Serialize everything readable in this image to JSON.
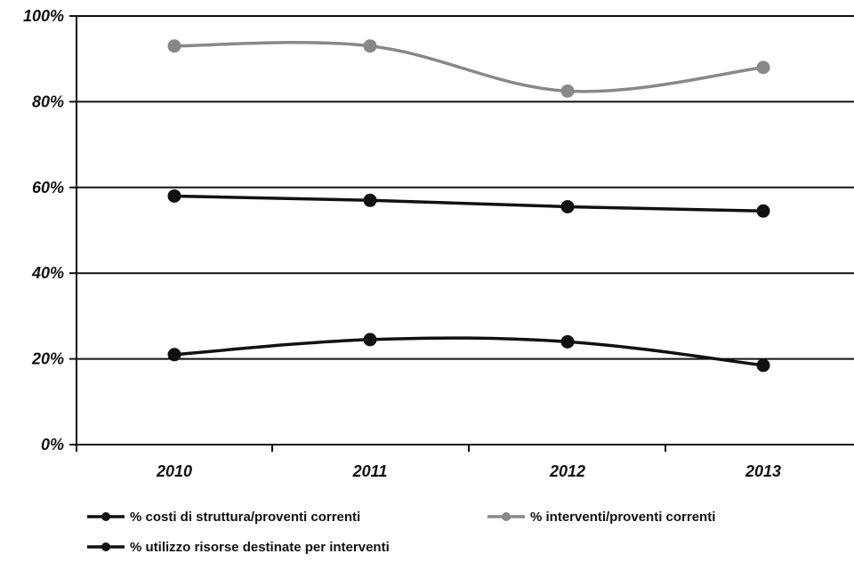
{
  "chart_data": {
    "type": "line",
    "categories": [
      "2010",
      "2011",
      "2012",
      "2013"
    ],
    "ylim": [
      0,
      100
    ],
    "yticks": [
      "0%",
      "20%",
      "40%",
      "60%",
      "80%",
      "100%"
    ],
    "grid": true,
    "legend_position": "bottom-left",
    "series": [
      {
        "name": "% costi di struttura/proventi correnti",
        "values": [
          58,
          57,
          55.5,
          54.5
        ],
        "color": "#111111"
      },
      {
        "name": "% interventi/proventi correnti",
        "values": [
          93,
          93,
          82.5,
          88
        ],
        "color": "#888888"
      },
      {
        "name": "% utilizzo risorse destinate per interventi",
        "values": [
          21,
          24.5,
          24,
          18.5
        ],
        "color": "#111111"
      }
    ]
  }
}
